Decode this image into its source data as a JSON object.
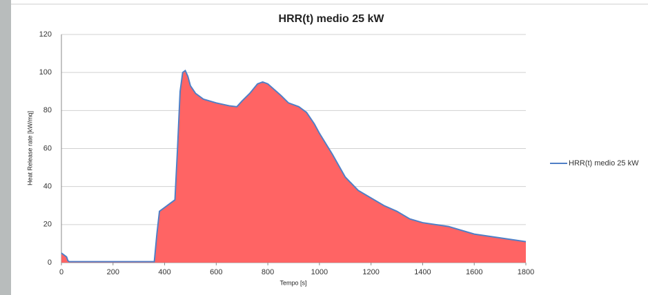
{
  "chart_data": {
    "type": "line",
    "title": "HRR(t) medio 25 kW",
    "x_label": "Tempo [s]",
    "y_label": "Heat Release rate [kW/mq]",
    "x": [
      0,
      10,
      20,
      25,
      30,
      100,
      200,
      300,
      360,
      370,
      380,
      400,
      420,
      440,
      450,
      460,
      470,
      480,
      490,
      500,
      520,
      550,
      600,
      650,
      680,
      700,
      730,
      760,
      780,
      800,
      850,
      880,
      920,
      950,
      980,
      1000,
      1050,
      1100,
      1150,
      1200,
      1250,
      1300,
      1350,
      1400,
      1450,
      1500,
      1550,
      1600,
      1650,
      1700,
      1750,
      1800
    ],
    "series": [
      {
        "name": "HRR(t) medio 25 kW",
        "color": "#4f7fc6",
        "fill": "#ff6464",
        "values": [
          5,
          4,
          3,
          1,
          0.5,
          0.5,
          0.5,
          0.5,
          0.5,
          15,
          27,
          29,
          31,
          33,
          60,
          90,
          100,
          101,
          98,
          93,
          89,
          86,
          84,
          82.5,
          82,
          85,
          89,
          94,
          95,
          94,
          88,
          84,
          82,
          79,
          73,
          68,
          57,
          45,
          38,
          34,
          30,
          27,
          23,
          21,
          20,
          19,
          17,
          15,
          14,
          13,
          12,
          11
        ]
      }
    ],
    "xlim": [
      0,
      1800
    ],
    "xticks": [
      0,
      200,
      400,
      600,
      800,
      1000,
      1200,
      1400,
      1600,
      1800
    ],
    "ylim": [
      0,
      120
    ],
    "yticks": [
      0,
      20,
      40,
      60,
      80,
      100,
      120
    ],
    "grid": true,
    "legend": "right"
  }
}
